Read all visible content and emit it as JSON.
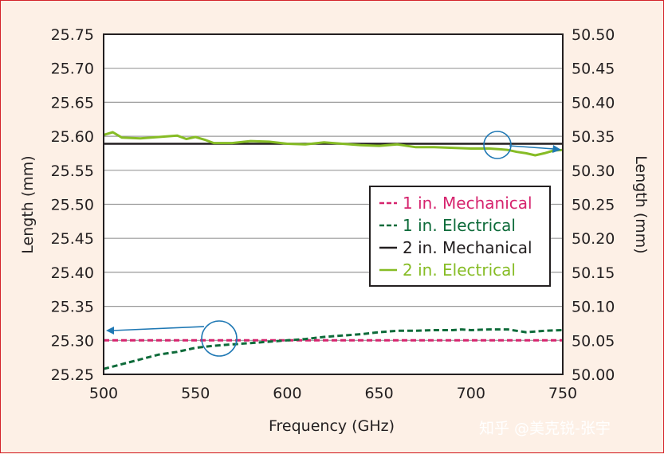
{
  "chart_data": {
    "type": "line",
    "xlabel": "Frequency (GHz)",
    "ylabel_left": "Length (mm)",
    "ylabel_right": "Length (mm)",
    "xlim": [
      500,
      750
    ],
    "ylim_left": [
      25.25,
      25.75
    ],
    "ylim_right": [
      50.0,
      50.5
    ],
    "x_ticks": [
      "500",
      "550",
      "600",
      "650",
      "700",
      "750"
    ],
    "y_ticks_left": [
      "25.25",
      "25.30",
      "25.35",
      "25.40",
      "25.45",
      "25.50",
      "25.55",
      "25.60",
      "25.65",
      "25.70",
      "25.75"
    ],
    "y_ticks_right": [
      "50.00",
      "50.05",
      "50.10",
      "50.15",
      "50.20",
      "50.25",
      "50.30",
      "50.35",
      "50.40",
      "50.45",
      "50.50"
    ],
    "grid": true,
    "legend_position": "center-right",
    "series": [
      {
        "name": "1 in. Mechanical",
        "axis": "left",
        "style": "dashed",
        "color": "#d6246e",
        "x": [
          500,
          750
        ],
        "y": [
          25.3,
          25.3
        ]
      },
      {
        "name": "1 in. Electrical",
        "axis": "left",
        "style": "dashed",
        "color": "#0e6b3a",
        "x": [
          500,
          510,
          520,
          530,
          540,
          550,
          560,
          570,
          580,
          590,
          600,
          610,
          620,
          630,
          640,
          650,
          660,
          670,
          680,
          690,
          695,
          700,
          710,
          720,
          730,
          740,
          750
        ],
        "y": [
          25.258,
          25.265,
          25.272,
          25.279,
          25.283,
          25.289,
          25.292,
          25.294,
          25.296,
          25.298,
          25.3,
          25.302,
          25.305,
          25.307,
          25.309,
          25.312,
          25.314,
          25.314,
          25.315,
          25.315,
          25.316,
          25.315,
          25.316,
          25.316,
          25.312,
          25.314,
          25.315
        ]
      },
      {
        "name": "2 in. Mechanical",
        "axis": "right",
        "style": "solid",
        "color": "#231f20",
        "x": [
          500,
          750
        ],
        "y": [
          50.339,
          50.339
        ]
      },
      {
        "name": "2 in. Electrical",
        "axis": "right",
        "style": "solid",
        "color": "#86bc25",
        "x": [
          500,
          505,
          510,
          520,
          530,
          540,
          545,
          550,
          555,
          560,
          570,
          580,
          590,
          600,
          610,
          620,
          630,
          640,
          650,
          660,
          670,
          680,
          690,
          700,
          710,
          715,
          720,
          725,
          730,
          735,
          740,
          745,
          750
        ],
        "y": [
          50.352,
          50.356,
          50.348,
          50.347,
          50.349,
          50.351,
          50.346,
          50.349,
          50.345,
          50.34,
          50.34,
          50.343,
          50.342,
          50.339,
          50.338,
          50.341,
          50.339,
          50.337,
          50.336,
          50.338,
          50.334,
          50.334,
          50.333,
          50.332,
          50.332,
          50.331,
          50.33,
          50.327,
          50.325,
          50.322,
          50.325,
          50.329,
          50.33
        ]
      }
    ]
  },
  "watermark": "知乎 @美克锐-张宇"
}
